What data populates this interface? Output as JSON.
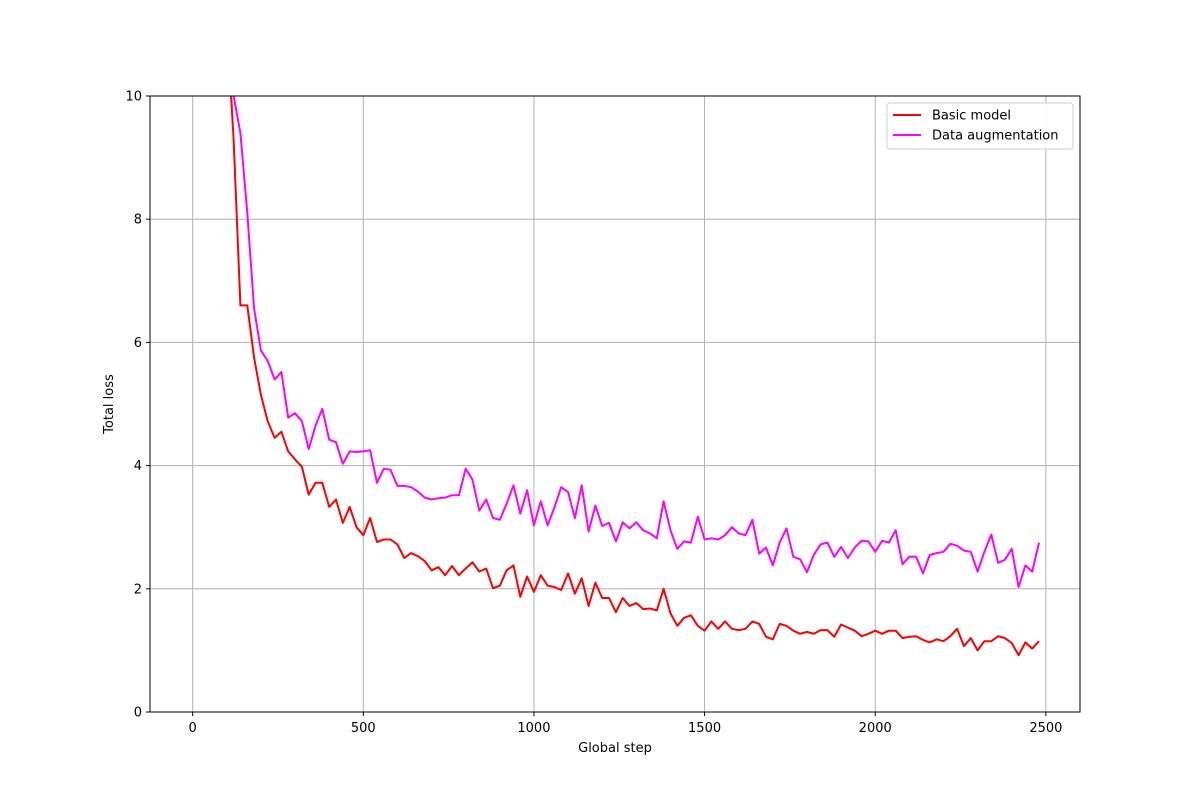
{
  "chart_data": {
    "type": "line",
    "title": "",
    "xlabel": "Global step",
    "ylabel": "Total loss",
    "xlim": [
      -125,
      2600
    ],
    "ylim": [
      0,
      10
    ],
    "xticks": [
      0,
      500,
      1000,
      1500,
      2000,
      2500
    ],
    "yticks": [
      0,
      2,
      4,
      6,
      8,
      10
    ],
    "grid": true,
    "legend_position": "upper right",
    "x": [
      100,
      120,
      140,
      160,
      180,
      200,
      220,
      240,
      260,
      280,
      300,
      320,
      340,
      360,
      380,
      400,
      420,
      440,
      460,
      480,
      500,
      520,
      540,
      560,
      580,
      600,
      620,
      640,
      660,
      680,
      700,
      720,
      740,
      760,
      780,
      800,
      820,
      840,
      860,
      880,
      900,
      920,
      940,
      960,
      980,
      1000,
      1020,
      1040,
      1060,
      1080,
      1100,
      1120,
      1140,
      1160,
      1180,
      1200,
      1220,
      1240,
      1260,
      1280,
      1300,
      1320,
      1340,
      1360,
      1380,
      1400,
      1420,
      1440,
      1460,
      1480,
      1500,
      1520,
      1540,
      1560,
      1580,
      1600,
      1620,
      1640,
      1660,
      1680,
      1700,
      1720,
      1740,
      1760,
      1780,
      1800,
      1820,
      1840,
      1860,
      1880,
      1900,
      1920,
      1940,
      1960,
      1980,
      2000,
      2020,
      2040,
      2060,
      2080,
      2100,
      2120,
      2140,
      2160,
      2180,
      2200,
      2220,
      2240,
      2260,
      2280,
      2300,
      2320,
      2340,
      2360,
      2380,
      2400,
      2420,
      2440,
      2460,
      2480
    ],
    "series": [
      {
        "name": "Basic model",
        "color": "#ff0000",
        "values": [
          11.2,
          9.3,
          6.6,
          6.6,
          5.75,
          5.15,
          4.72,
          4.45,
          4.55,
          4.23,
          4.1,
          3.98,
          3.53,
          3.72,
          3.72,
          3.33,
          3.45,
          3.07,
          3.33,
          3.0,
          2.87,
          3.15,
          2.76,
          2.8,
          2.8,
          2.72,
          2.5,
          2.58,
          2.53,
          2.45,
          2.3,
          2.35,
          2.22,
          2.37,
          2.22,
          2.33,
          2.43,
          2.28,
          2.33,
          2.01,
          2.05,
          2.3,
          2.38,
          1.87,
          2.2,
          1.95,
          2.22,
          2.05,
          2.03,
          1.98,
          2.25,
          1.92,
          2.17,
          1.72,
          2.1,
          1.85,
          1.85,
          1.62,
          1.85,
          1.72,
          1.77,
          1.67,
          1.68,
          1.65,
          2.0,
          1.6,
          1.4,
          1.53,
          1.57,
          1.4,
          1.32,
          1.47,
          1.35,
          1.47,
          1.35,
          1.33,
          1.35,
          1.47,
          1.43,
          1.22,
          1.18,
          1.43,
          1.4,
          1.32,
          1.27,
          1.3,
          1.27,
          1.33,
          1.33,
          1.22,
          1.42,
          1.37,
          1.32,
          1.23,
          1.27,
          1.32,
          1.27,
          1.32,
          1.32,
          1.2,
          1.22,
          1.23,
          1.17,
          1.13,
          1.18,
          1.15,
          1.23,
          1.35,
          1.07,
          1.2,
          1.0,
          1.15,
          1.15,
          1.23,
          1.2,
          1.12,
          0.92,
          1.13,
          1.03,
          1.15
        ]
      },
      {
        "name": "Data augmentation",
        "color": "#ff00ff",
        "values": [
          10.4,
          10.0,
          9.4,
          8.1,
          6.55,
          5.87,
          5.7,
          5.4,
          5.52,
          4.78,
          4.85,
          4.72,
          4.27,
          4.65,
          4.92,
          4.42,
          4.38,
          4.03,
          4.23,
          4.22,
          4.23,
          4.25,
          3.72,
          3.95,
          3.93,
          3.67,
          3.67,
          3.65,
          3.58,
          3.48,
          3.45,
          3.47,
          3.48,
          3.52,
          3.52,
          3.95,
          3.77,
          3.27,
          3.45,
          3.15,
          3.12,
          3.38,
          3.68,
          3.22,
          3.6,
          3.03,
          3.42,
          3.03,
          3.32,
          3.65,
          3.57,
          3.15,
          3.68,
          2.93,
          3.35,
          3.02,
          3.07,
          2.77,
          3.08,
          2.98,
          3.08,
          2.95,
          2.9,
          2.82,
          3.42,
          2.95,
          2.65,
          2.77,
          2.75,
          3.17,
          2.8,
          2.82,
          2.8,
          2.87,
          3.0,
          2.9,
          2.87,
          3.12,
          2.57,
          2.67,
          2.38,
          2.75,
          2.98,
          2.52,
          2.48,
          2.27,
          2.55,
          2.72,
          2.75,
          2.52,
          2.68,
          2.5,
          2.67,
          2.78,
          2.77,
          2.6,
          2.78,
          2.75,
          2.95,
          2.4,
          2.52,
          2.52,
          2.25,
          2.55,
          2.58,
          2.6,
          2.73,
          2.7,
          2.62,
          2.6,
          2.28,
          2.6,
          2.88,
          2.42,
          2.47,
          2.65,
          2.03,
          2.38,
          2.28,
          2.75
        ]
      }
    ]
  }
}
